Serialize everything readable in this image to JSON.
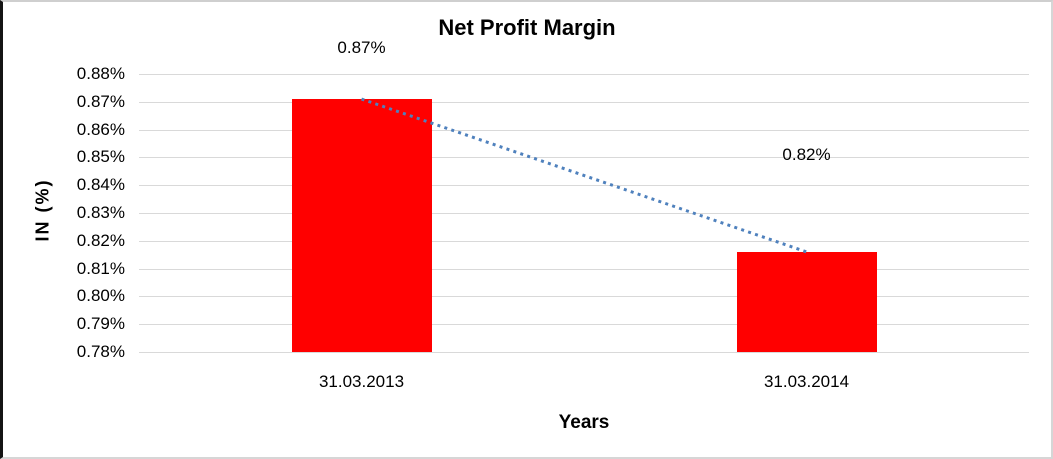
{
  "chart_data": {
    "type": "bar",
    "title": "Net Profit Margin",
    "xlabel": "Years",
    "ylabel": "IN (%)",
    "categories": [
      "31.03.2013",
      "31.03.2014"
    ],
    "values": [
      0.871,
      0.816
    ],
    "data_labels": [
      "0.87%",
      "0.82%"
    ],
    "ylim": [
      0.78,
      0.88
    ],
    "ytick_step": 0.01,
    "ytick_labels": [
      "0.88%",
      "0.87%",
      "0.86%",
      "0.85%",
      "0.84%",
      "0.83%",
      "0.82%",
      "0.81%",
      "0.80%",
      "0.79%",
      "0.78%"
    ],
    "grid": true,
    "legend_position": "none",
    "trendline": {
      "style": "dotted",
      "connects": [
        "0.87%",
        "0.82%"
      ]
    },
    "colors": {
      "bar": "#ff0000",
      "gridline": "#d9d9d9",
      "trendline": "#4f81bd",
      "text": "#000000",
      "background": "#ffffff"
    }
  }
}
